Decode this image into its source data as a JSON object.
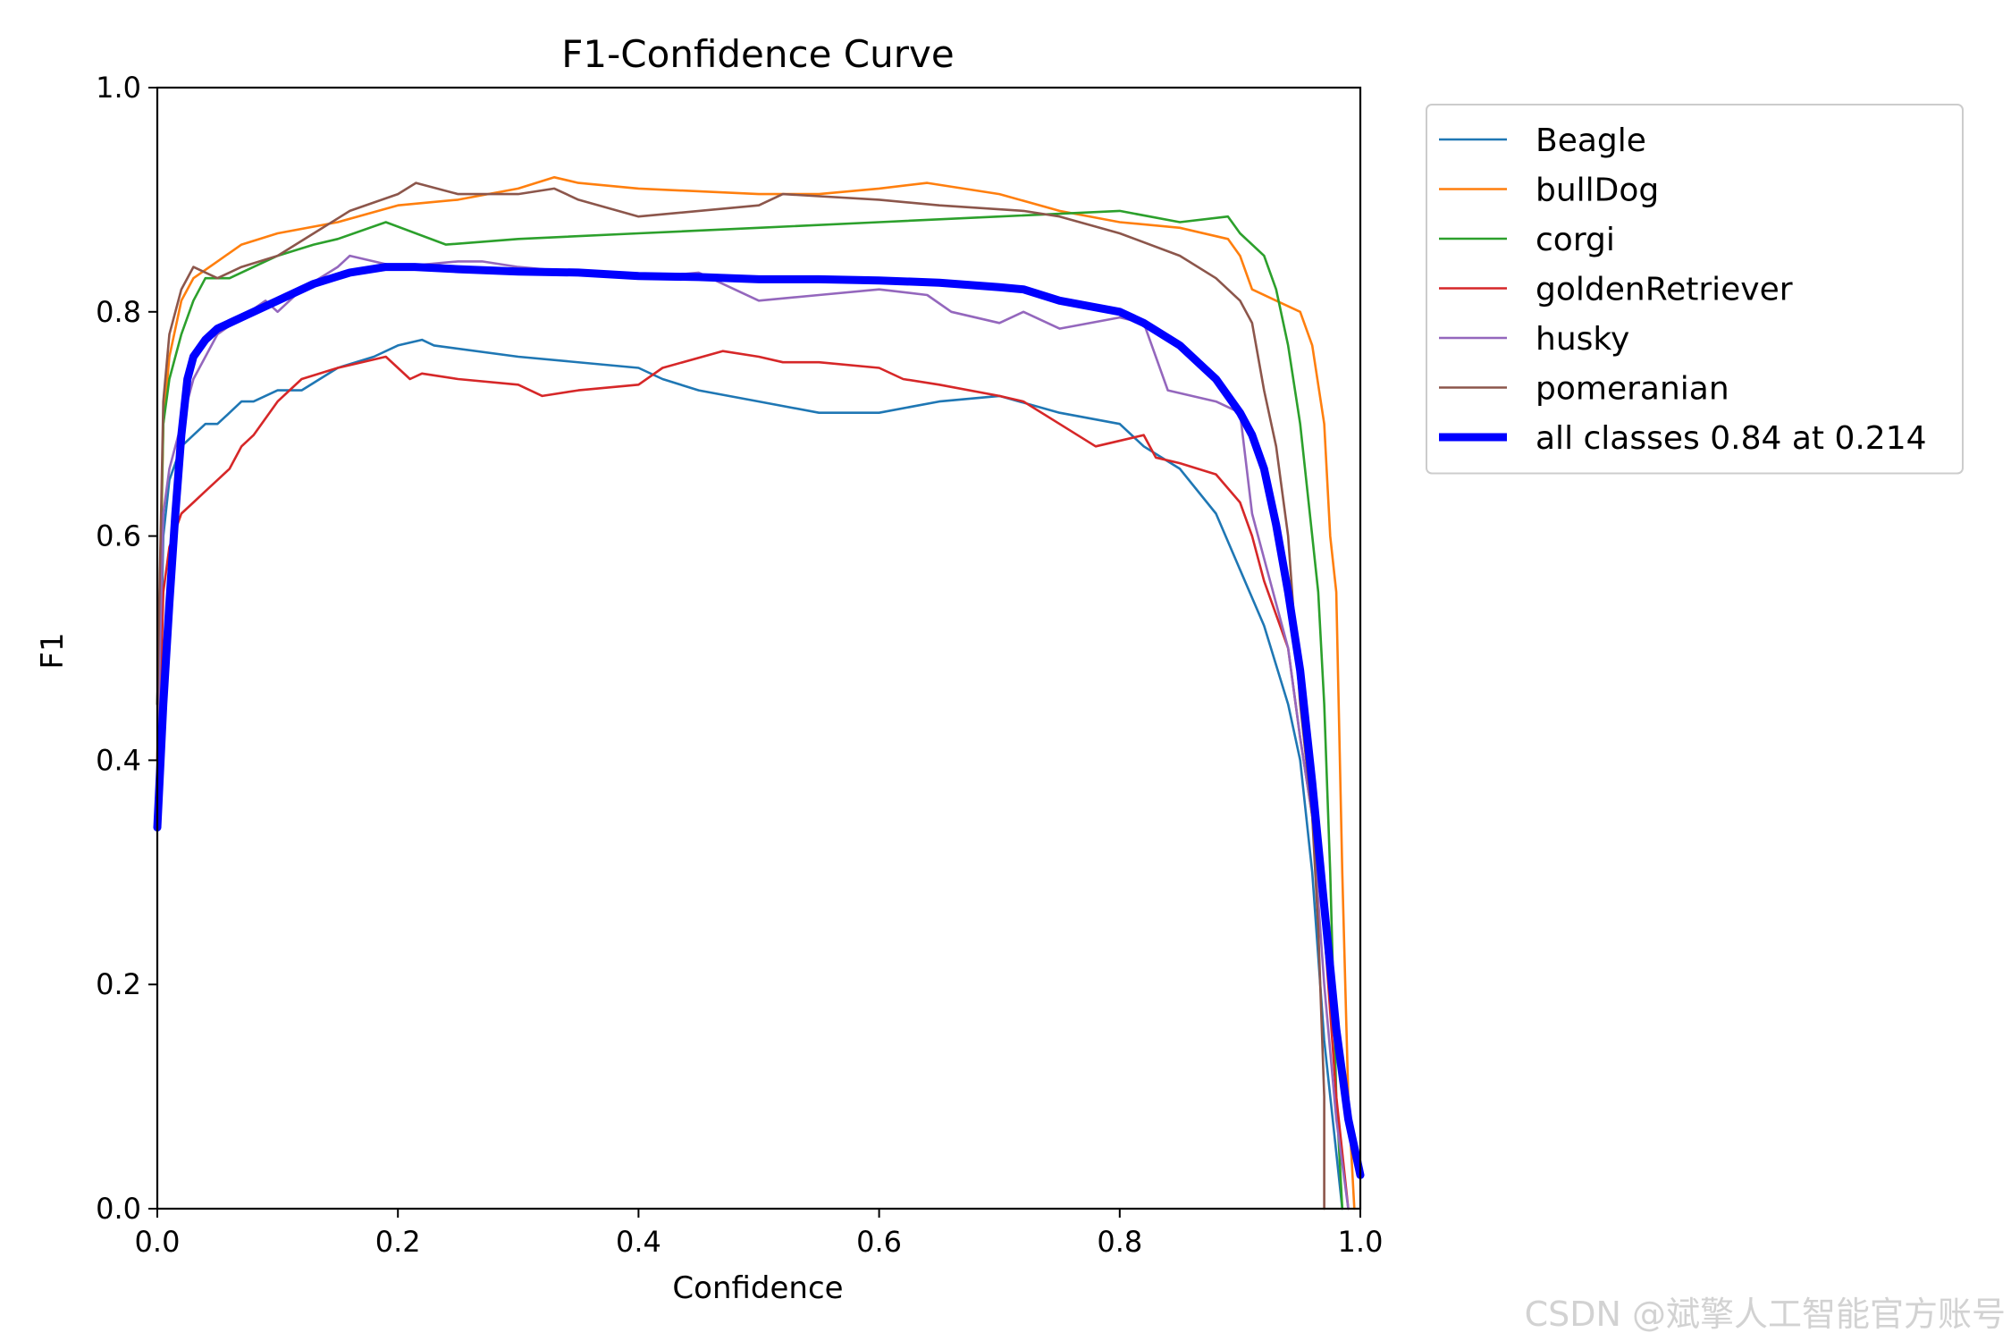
{
  "chart_data": {
    "type": "line",
    "title": "F1-Confidence Curve",
    "xlabel": "Confidence",
    "ylabel": "F1",
    "xlim": [
      0,
      1
    ],
    "ylim": [
      0,
      1
    ],
    "xticks": [
      0.0,
      0.2,
      0.4,
      0.6,
      0.8,
      1.0
    ],
    "yticks": [
      0.0,
      0.2,
      0.4,
      0.6,
      0.8,
      1.0
    ],
    "xtick_labels": [
      "0.0",
      "0.2",
      "0.4",
      "0.6",
      "0.8",
      "1.0"
    ],
    "ytick_labels": [
      "0.0",
      "0.2",
      "0.4",
      "0.6",
      "0.8",
      "1.0"
    ],
    "legend_position": "outside-right-top",
    "series": [
      {
        "name": "Beagle",
        "color": "#1f77b4",
        "width": "thin",
        "x": [
          0.0,
          0.005,
          0.01,
          0.02,
          0.03,
          0.04,
          0.05,
          0.06,
          0.07,
          0.08,
          0.1,
          0.12,
          0.15,
          0.18,
          0.2,
          0.22,
          0.23,
          0.3,
          0.4,
          0.42,
          0.45,
          0.5,
          0.55,
          0.6,
          0.65,
          0.7,
          0.75,
          0.8,
          0.82,
          0.85,
          0.88,
          0.9,
          0.92,
          0.94,
          0.95,
          0.96,
          0.97,
          0.98,
          0.985
        ],
        "y": [
          0.35,
          0.6,
          0.65,
          0.68,
          0.69,
          0.7,
          0.7,
          0.71,
          0.72,
          0.72,
          0.73,
          0.73,
          0.75,
          0.76,
          0.77,
          0.775,
          0.77,
          0.76,
          0.75,
          0.74,
          0.73,
          0.72,
          0.71,
          0.71,
          0.72,
          0.725,
          0.71,
          0.7,
          0.68,
          0.66,
          0.62,
          0.57,
          0.52,
          0.45,
          0.4,
          0.3,
          0.15,
          0.05,
          0.0
        ]
      },
      {
        "name": "bullDog",
        "color": "#ff7f0e",
        "width": "thin",
        "x": [
          0.0,
          0.005,
          0.01,
          0.02,
          0.03,
          0.05,
          0.07,
          0.1,
          0.15,
          0.2,
          0.25,
          0.3,
          0.33,
          0.35,
          0.4,
          0.5,
          0.55,
          0.6,
          0.64,
          0.7,
          0.75,
          0.8,
          0.85,
          0.89,
          0.9,
          0.91,
          0.93,
          0.95,
          0.96,
          0.97,
          0.975,
          0.98,
          0.985,
          0.99,
          0.995
        ],
        "y": [
          0.4,
          0.7,
          0.76,
          0.81,
          0.83,
          0.845,
          0.86,
          0.87,
          0.88,
          0.895,
          0.9,
          0.91,
          0.92,
          0.915,
          0.91,
          0.905,
          0.905,
          0.91,
          0.915,
          0.905,
          0.89,
          0.88,
          0.875,
          0.865,
          0.85,
          0.82,
          0.81,
          0.8,
          0.77,
          0.7,
          0.6,
          0.55,
          0.3,
          0.1,
          0.0
        ]
      },
      {
        "name": "corgi",
        "color": "#2ca02c",
        "width": "thin",
        "x": [
          0.0,
          0.005,
          0.01,
          0.02,
          0.03,
          0.04,
          0.06,
          0.08,
          0.1,
          0.13,
          0.15,
          0.19,
          0.24,
          0.3,
          0.4,
          0.5,
          0.6,
          0.7,
          0.8,
          0.85,
          0.89,
          0.9,
          0.92,
          0.93,
          0.94,
          0.95,
          0.96,
          0.965,
          0.97,
          0.975,
          0.98,
          0.985
        ],
        "y": [
          0.45,
          0.7,
          0.74,
          0.78,
          0.81,
          0.83,
          0.83,
          0.84,
          0.85,
          0.86,
          0.865,
          0.88,
          0.86,
          0.865,
          0.87,
          0.875,
          0.88,
          0.885,
          0.89,
          0.88,
          0.885,
          0.87,
          0.85,
          0.82,
          0.77,
          0.7,
          0.6,
          0.55,
          0.45,
          0.3,
          0.1,
          0.0
        ]
      },
      {
        "name": "goldenRetriever",
        "color": "#d62728",
        "width": "thin",
        "x": [
          0.0,
          0.005,
          0.01,
          0.02,
          0.03,
          0.04,
          0.05,
          0.06,
          0.07,
          0.08,
          0.1,
          0.12,
          0.15,
          0.19,
          0.2,
          0.21,
          0.22,
          0.25,
          0.3,
          0.32,
          0.35,
          0.4,
          0.42,
          0.47,
          0.5,
          0.52,
          0.55,
          0.6,
          0.62,
          0.65,
          0.7,
          0.72,
          0.75,
          0.78,
          0.82,
          0.83,
          0.85,
          0.88,
          0.9,
          0.91,
          0.92,
          0.94,
          0.95,
          0.96,
          0.97,
          0.98,
          0.99
        ],
        "y": [
          0.35,
          0.55,
          0.59,
          0.62,
          0.63,
          0.64,
          0.65,
          0.66,
          0.68,
          0.69,
          0.72,
          0.74,
          0.75,
          0.76,
          0.75,
          0.74,
          0.745,
          0.74,
          0.735,
          0.725,
          0.73,
          0.735,
          0.75,
          0.765,
          0.76,
          0.755,
          0.755,
          0.75,
          0.74,
          0.735,
          0.725,
          0.72,
          0.7,
          0.68,
          0.69,
          0.67,
          0.665,
          0.655,
          0.63,
          0.6,
          0.56,
          0.5,
          0.42,
          0.35,
          0.25,
          0.1,
          0.0
        ]
      },
      {
        "name": "husky",
        "color": "#9467bd",
        "width": "thin",
        "x": [
          0.0,
          0.005,
          0.01,
          0.02,
          0.03,
          0.05,
          0.07,
          0.09,
          0.1,
          0.12,
          0.15,
          0.16,
          0.2,
          0.25,
          0.27,
          0.3,
          0.4,
          0.45,
          0.5,
          0.55,
          0.6,
          0.64,
          0.66,
          0.7,
          0.72,
          0.75,
          0.8,
          0.82,
          0.84,
          0.88,
          0.9,
          0.91,
          0.92,
          0.94,
          0.95,
          0.96,
          0.97,
          0.98,
          0.99
        ],
        "y": [
          0.4,
          0.62,
          0.66,
          0.7,
          0.74,
          0.78,
          0.795,
          0.81,
          0.8,
          0.82,
          0.84,
          0.85,
          0.84,
          0.845,
          0.845,
          0.84,
          0.83,
          0.835,
          0.81,
          0.815,
          0.82,
          0.815,
          0.8,
          0.79,
          0.8,
          0.785,
          0.795,
          0.79,
          0.73,
          0.72,
          0.71,
          0.62,
          0.58,
          0.5,
          0.42,
          0.35,
          0.2,
          0.08,
          0.0
        ]
      },
      {
        "name": "pomeranian",
        "color": "#8c564b",
        "width": "thin",
        "x": [
          0.0,
          0.005,
          0.01,
          0.02,
          0.03,
          0.05,
          0.07,
          0.1,
          0.13,
          0.16,
          0.2,
          0.215,
          0.25,
          0.3,
          0.33,
          0.35,
          0.4,
          0.5,
          0.52,
          0.6,
          0.65,
          0.72,
          0.75,
          0.8,
          0.85,
          0.88,
          0.9,
          0.91,
          0.92,
          0.93,
          0.94,
          0.95,
          0.96,
          0.965,
          0.97,
          0.97
        ],
        "y": [
          0.45,
          0.72,
          0.78,
          0.82,
          0.84,
          0.83,
          0.84,
          0.85,
          0.87,
          0.89,
          0.905,
          0.915,
          0.905,
          0.905,
          0.91,
          0.9,
          0.885,
          0.895,
          0.905,
          0.9,
          0.895,
          0.89,
          0.885,
          0.87,
          0.85,
          0.83,
          0.81,
          0.79,
          0.73,
          0.68,
          0.6,
          0.45,
          0.35,
          0.25,
          0.1,
          0.0
        ]
      },
      {
        "name": "all classes 0.84 at 0.214",
        "color": "#0000ff",
        "width": "thick",
        "x": [
          0.0,
          0.005,
          0.01,
          0.015,
          0.02,
          0.025,
          0.03,
          0.04,
          0.05,
          0.07,
          0.1,
          0.13,
          0.16,
          0.19,
          0.214,
          0.25,
          0.3,
          0.35,
          0.4,
          0.45,
          0.5,
          0.55,
          0.6,
          0.65,
          0.7,
          0.72,
          0.75,
          0.8,
          0.82,
          0.85,
          0.87,
          0.88,
          0.9,
          0.91,
          0.92,
          0.93,
          0.94,
          0.95,
          0.96,
          0.97,
          0.98,
          0.99,
          1.0
        ],
        "y": [
          0.34,
          0.45,
          0.54,
          0.62,
          0.69,
          0.74,
          0.76,
          0.775,
          0.785,
          0.795,
          0.81,
          0.825,
          0.835,
          0.84,
          0.84,
          0.838,
          0.836,
          0.835,
          0.832,
          0.831,
          0.829,
          0.829,
          0.828,
          0.826,
          0.822,
          0.82,
          0.81,
          0.8,
          0.79,
          0.77,
          0.75,
          0.74,
          0.71,
          0.69,
          0.66,
          0.61,
          0.55,
          0.48,
          0.38,
          0.27,
          0.16,
          0.08,
          0.03
        ]
      }
    ]
  },
  "watermark": "CSDN @斌擎人工智能官方账号"
}
